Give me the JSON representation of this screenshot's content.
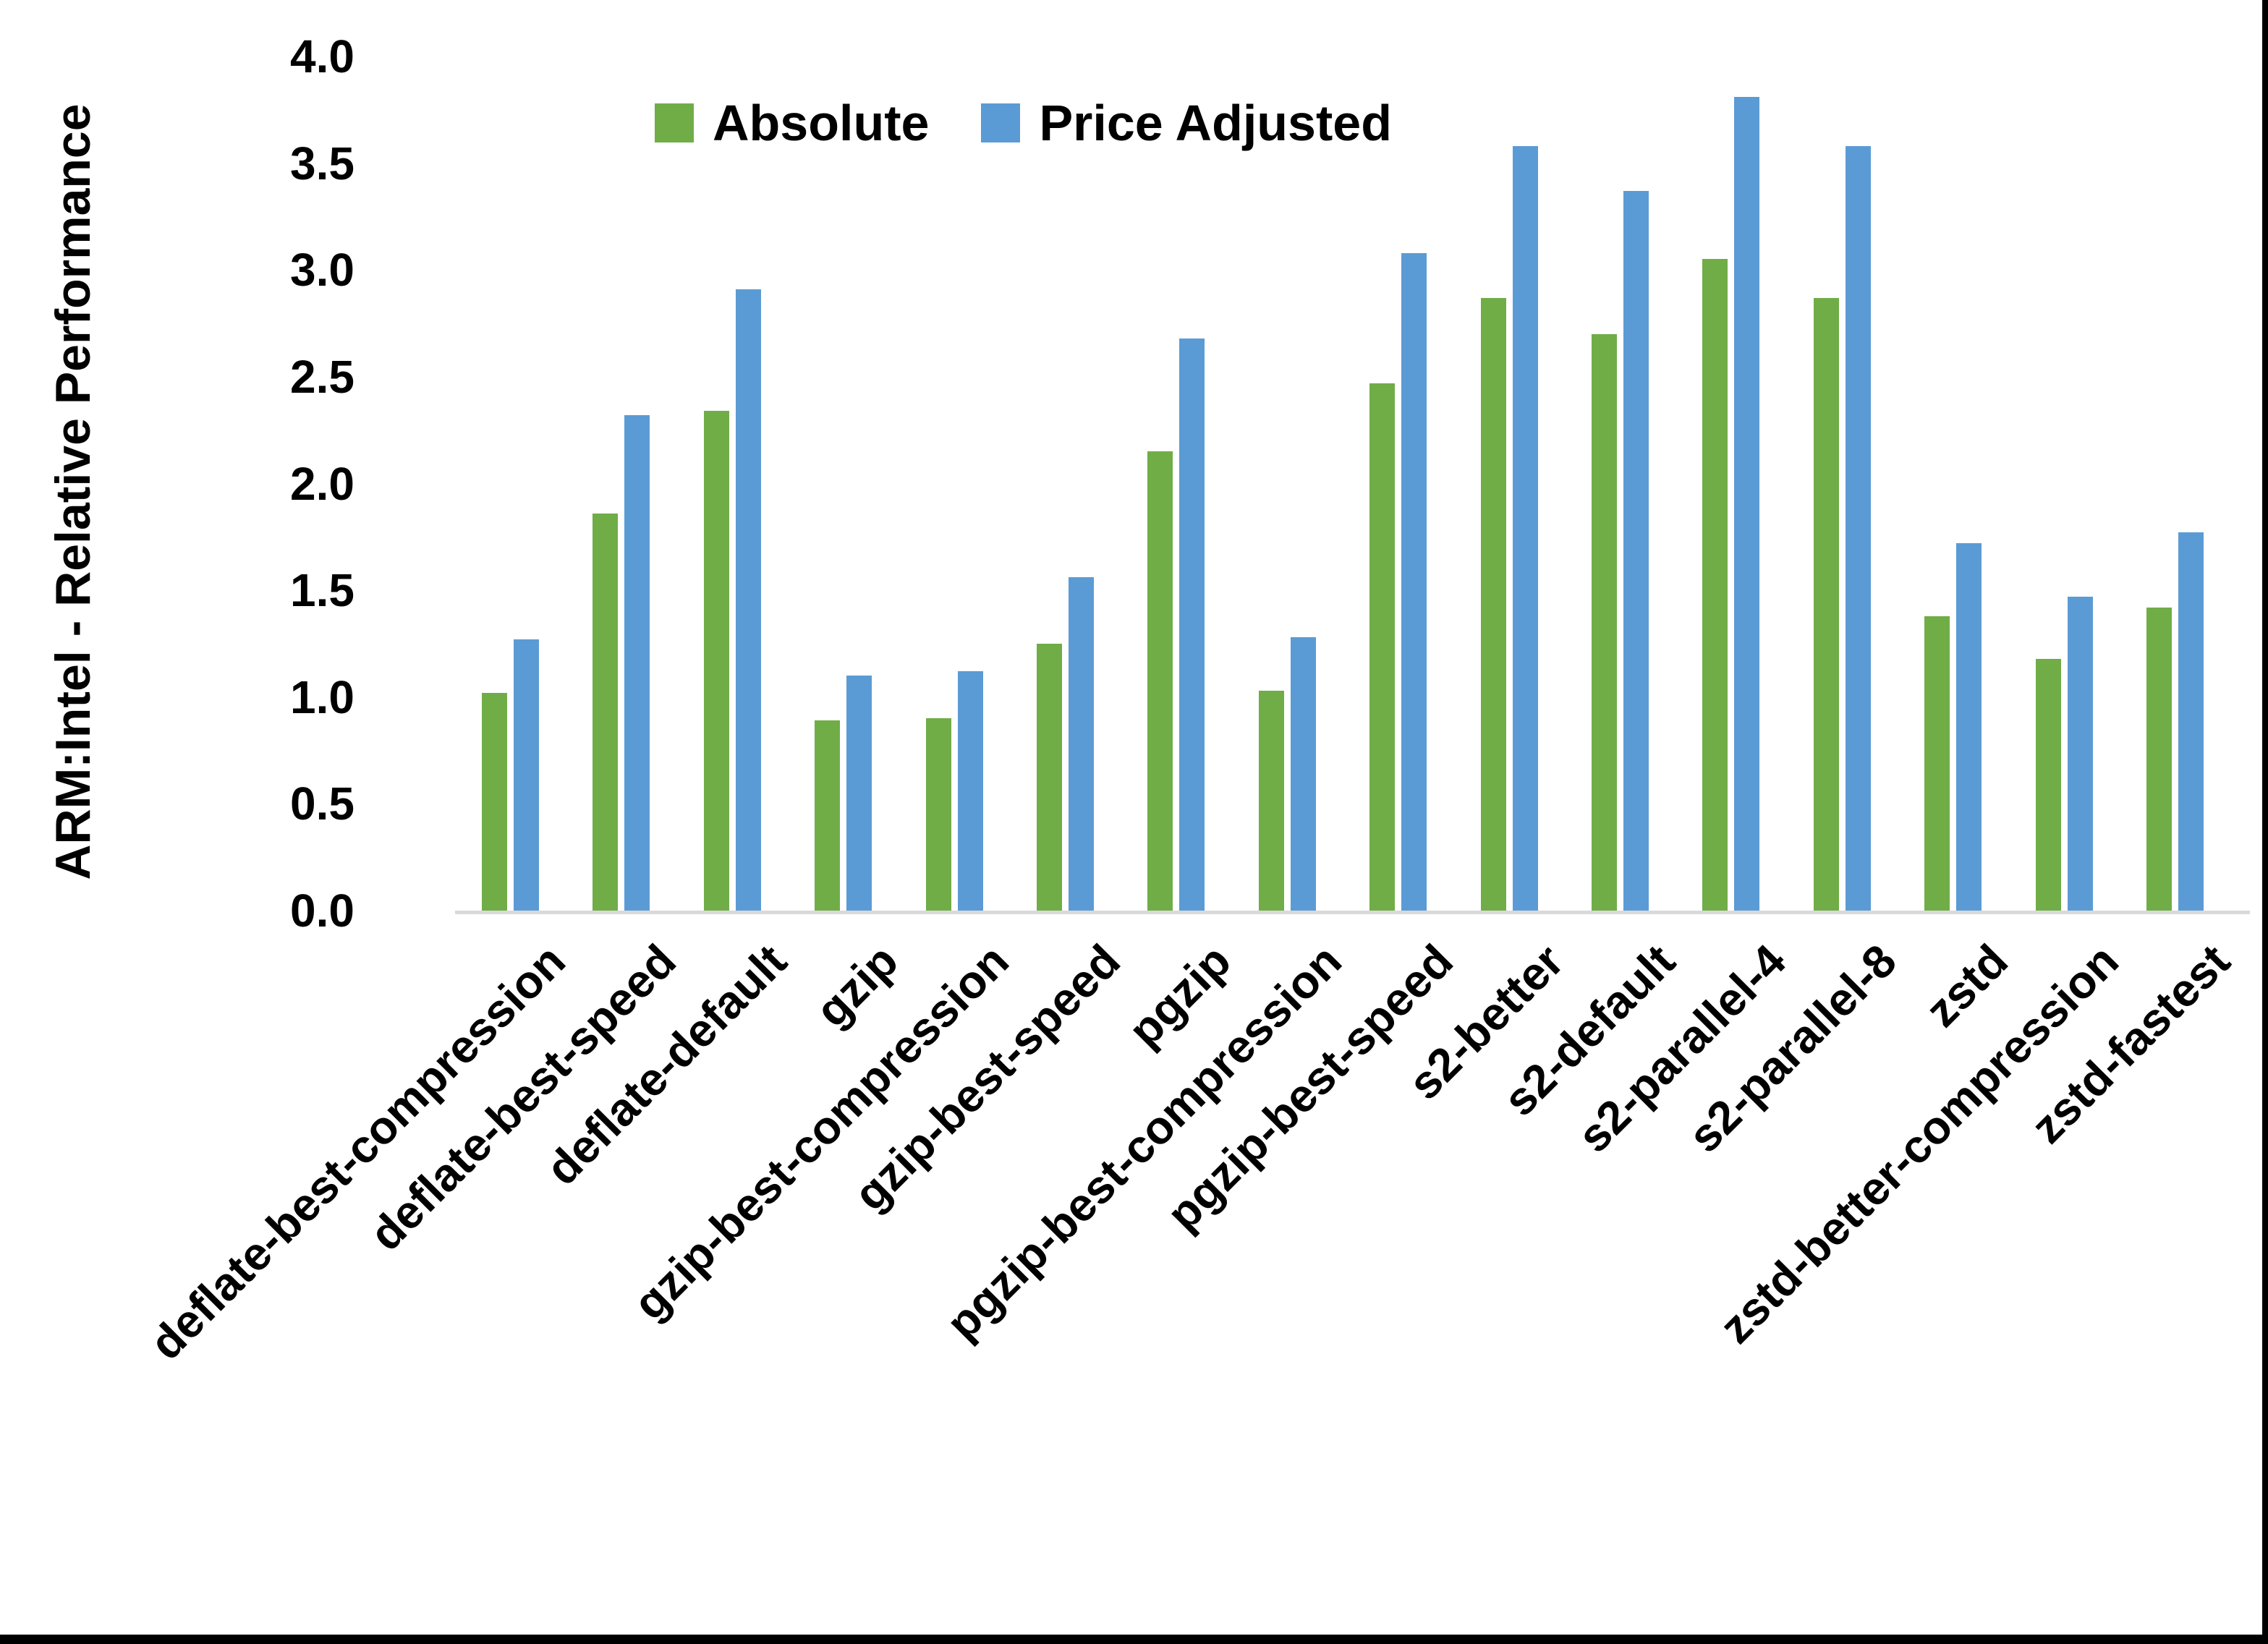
{
  "chart_data": {
    "type": "bar",
    "title": "",
    "ylabel": "ARM:Intel - Relative Performance",
    "xlabel": "",
    "ylim": [
      0.0,
      4.0
    ],
    "ytick_step": 0.5,
    "yticks": [
      "0.0",
      "0.5",
      "1.0",
      "1.5",
      "2.0",
      "2.5",
      "3.0",
      "3.5",
      "4.0"
    ],
    "grid": false,
    "legend_position": "top-center",
    "categories": [
      "deflate-best-compression",
      "deflate-best-speed",
      "deflate-default",
      "gzip",
      "gzip-best-compression",
      "gzip-best-speed",
      "pgzip",
      "pgzip-best-compression",
      "pgzip-best-speed",
      "s2-better",
      "s2-default",
      "s2-parallel-4",
      "s2-parallel-8",
      "zstd",
      "zstd-better-compression",
      "zstd-fastest"
    ],
    "series": [
      {
        "name": "Absolute",
        "color": "#70AD47",
        "values": [
          1.02,
          1.86,
          2.34,
          0.89,
          0.9,
          1.25,
          2.15,
          1.03,
          2.47,
          2.87,
          2.7,
          3.05,
          2.87,
          1.38,
          1.18,
          1.42
        ]
      },
      {
        "name": "Price Adjusted",
        "color": "#5B9BD5",
        "values": [
          1.27,
          2.32,
          2.91,
          1.1,
          1.12,
          1.56,
          2.68,
          1.28,
          3.08,
          3.58,
          3.37,
          3.81,
          3.58,
          1.72,
          1.47,
          1.77
        ]
      }
    ],
    "axis_line_color": "#D9D9D9",
    "text_color": "#000000"
  }
}
